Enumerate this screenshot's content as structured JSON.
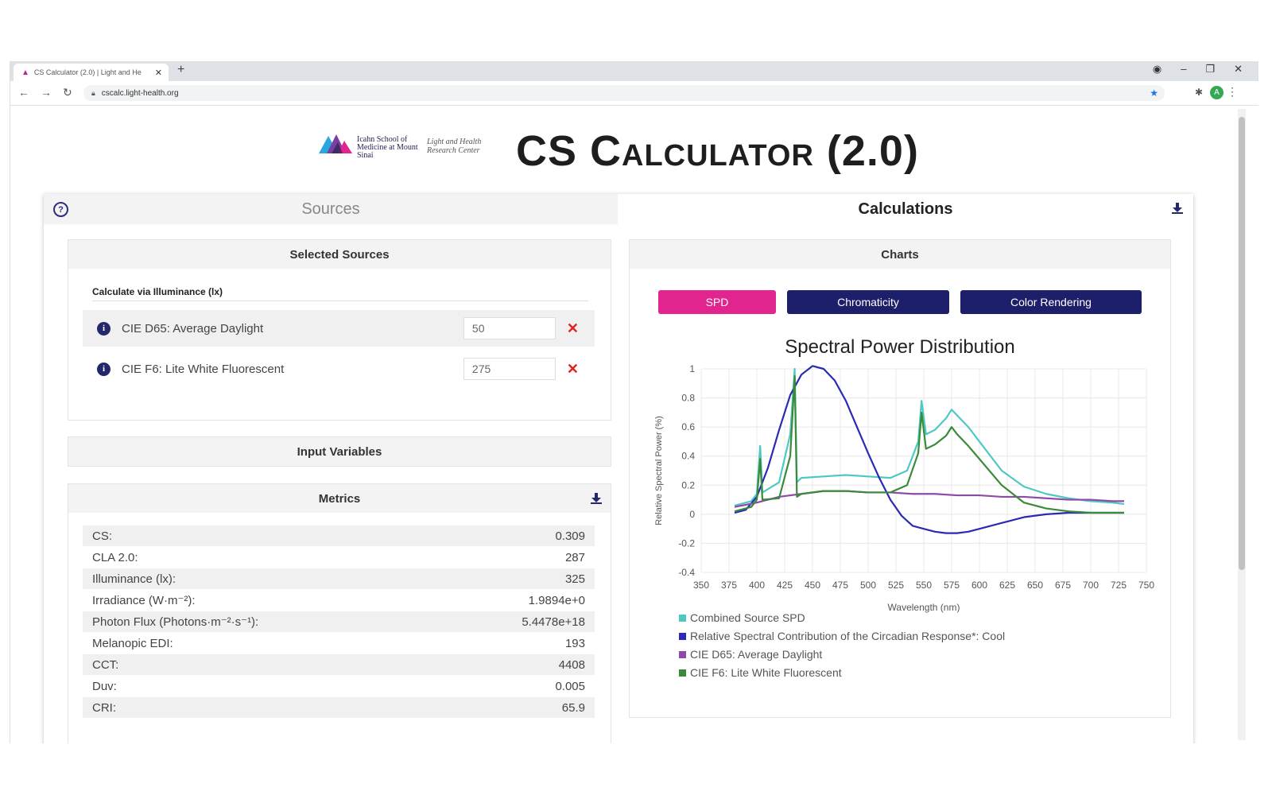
{
  "browser": {
    "tab_title": "CS Calculator (2.0) | Light and He",
    "url": "cscalc.light-health.org"
  },
  "header": {
    "logo_school": "Icahn School of Medicine at Mount Sinai",
    "logo_center": "Light and Health Research Center",
    "app_title": "CS Calculator (2.0)"
  },
  "tabs": {
    "sources": "Sources",
    "calculations": "Calculations"
  },
  "selected_sources": {
    "heading": "Selected Sources",
    "mode_label": "Calculate via Illuminance (lx)",
    "items": [
      {
        "name": "CIE D65: Average Daylight",
        "value": "50"
      },
      {
        "name": "CIE F6: Lite White Fluorescent",
        "value": "275"
      }
    ]
  },
  "input_variables": {
    "heading": "Input Variables"
  },
  "metrics": {
    "heading": "Metrics",
    "rows": [
      {
        "label": "CS:",
        "value": "0.309"
      },
      {
        "label": "CLA 2.0:",
        "value": "287"
      },
      {
        "label": "Illuminance (lx):",
        "value": "325"
      },
      {
        "label": "Irradiance (W·m⁻²):",
        "value": "1.9894e+0"
      },
      {
        "label": "Photon Flux (Photons·m⁻²·s⁻¹):",
        "value": "5.4478e+18"
      },
      {
        "label": "Melanopic EDI:",
        "value": "193"
      },
      {
        "label": "CCT:",
        "value": "4408"
      },
      {
        "label": "Duv:",
        "value": "0.005"
      },
      {
        "label": "CRI:",
        "value": "65.9"
      }
    ]
  },
  "charts": {
    "heading": "Charts",
    "buttons": [
      "SPD",
      "Chromaticity",
      "Color Rendering"
    ],
    "active": "SPD"
  },
  "chart_data": {
    "type": "line",
    "title": "Spectral Power Distribution",
    "xlabel": "Wavelength (nm)",
    "ylabel": "Relative Spectral Power (%)",
    "xlim": [
      350,
      750
    ],
    "ylim": [
      -0.4,
      1.0
    ],
    "xticks": [
      350,
      375,
      400,
      425,
      450,
      475,
      500,
      525,
      550,
      575,
      600,
      625,
      650,
      675,
      700,
      725,
      750
    ],
    "yticks": [
      1.0,
      0.8,
      0.6,
      0.4,
      0.2,
      0,
      -0.2,
      -0.4
    ],
    "grid": true,
    "legend_position": "bottom",
    "series": [
      {
        "name": "Combined Source SPD",
        "color": "#4ec8c4",
        "x": [
          380,
          395,
          400,
          403,
          405,
          420,
          430,
          434,
          436,
          440,
          460,
          480,
          500,
          520,
          535,
          545,
          548,
          552,
          560,
          570,
          575,
          580,
          590,
          600,
          620,
          640,
          660,
          680,
          700,
          720,
          730
        ],
        "y": [
          0.06,
          0.09,
          0.14,
          0.47,
          0.15,
          0.22,
          0.55,
          1.0,
          0.22,
          0.25,
          0.26,
          0.27,
          0.26,
          0.25,
          0.3,
          0.5,
          0.78,
          0.55,
          0.58,
          0.66,
          0.72,
          0.68,
          0.6,
          0.5,
          0.3,
          0.19,
          0.14,
          0.11,
          0.09,
          0.08,
          0.07
        ]
      },
      {
        "name": "Relative Spectral Contribution of the Circadian Response*: Cool",
        "color": "#2a2ab4",
        "x": [
          380,
          390,
          400,
          410,
          420,
          430,
          440,
          450,
          460,
          470,
          480,
          490,
          500,
          510,
          520,
          530,
          540,
          550,
          560,
          570,
          580,
          590,
          600,
          620,
          640,
          660,
          680,
          700,
          720,
          730
        ],
        "y": [
          0.01,
          0.03,
          0.12,
          0.32,
          0.58,
          0.82,
          0.96,
          1.02,
          1.0,
          0.92,
          0.78,
          0.6,
          0.42,
          0.25,
          0.1,
          -0.01,
          -0.08,
          -0.1,
          -0.12,
          -0.13,
          -0.13,
          -0.12,
          -0.1,
          -0.06,
          -0.02,
          0.0,
          0.01,
          0.01,
          0.01,
          0.01
        ]
      },
      {
        "name": "CIE D65: Average Daylight",
        "color": "#8e4aa8",
        "x": [
          380,
          400,
          420,
          440,
          460,
          480,
          500,
          520,
          540,
          560,
          580,
          600,
          620,
          640,
          660,
          680,
          700,
          720,
          730
        ],
        "y": [
          0.05,
          0.08,
          0.12,
          0.14,
          0.16,
          0.16,
          0.15,
          0.15,
          0.14,
          0.14,
          0.13,
          0.13,
          0.12,
          0.12,
          0.11,
          0.1,
          0.1,
          0.09,
          0.09
        ]
      },
      {
        "name": "CIE F6: Lite White Fluorescent",
        "color": "#3a8a3a",
        "x": [
          380,
          395,
          400,
          403,
          405,
          420,
          430,
          434,
          436,
          440,
          460,
          480,
          500,
          520,
          535,
          545,
          548,
          552,
          560,
          570,
          575,
          580,
          590,
          600,
          620,
          640,
          660,
          680,
          700,
          720,
          730
        ],
        "y": [
          0.02,
          0.05,
          0.1,
          0.38,
          0.1,
          0.11,
          0.4,
          0.95,
          0.12,
          0.14,
          0.16,
          0.16,
          0.15,
          0.15,
          0.2,
          0.42,
          0.7,
          0.45,
          0.48,
          0.54,
          0.6,
          0.55,
          0.47,
          0.38,
          0.2,
          0.08,
          0.04,
          0.02,
          0.01,
          0.01,
          0.01
        ]
      }
    ]
  }
}
